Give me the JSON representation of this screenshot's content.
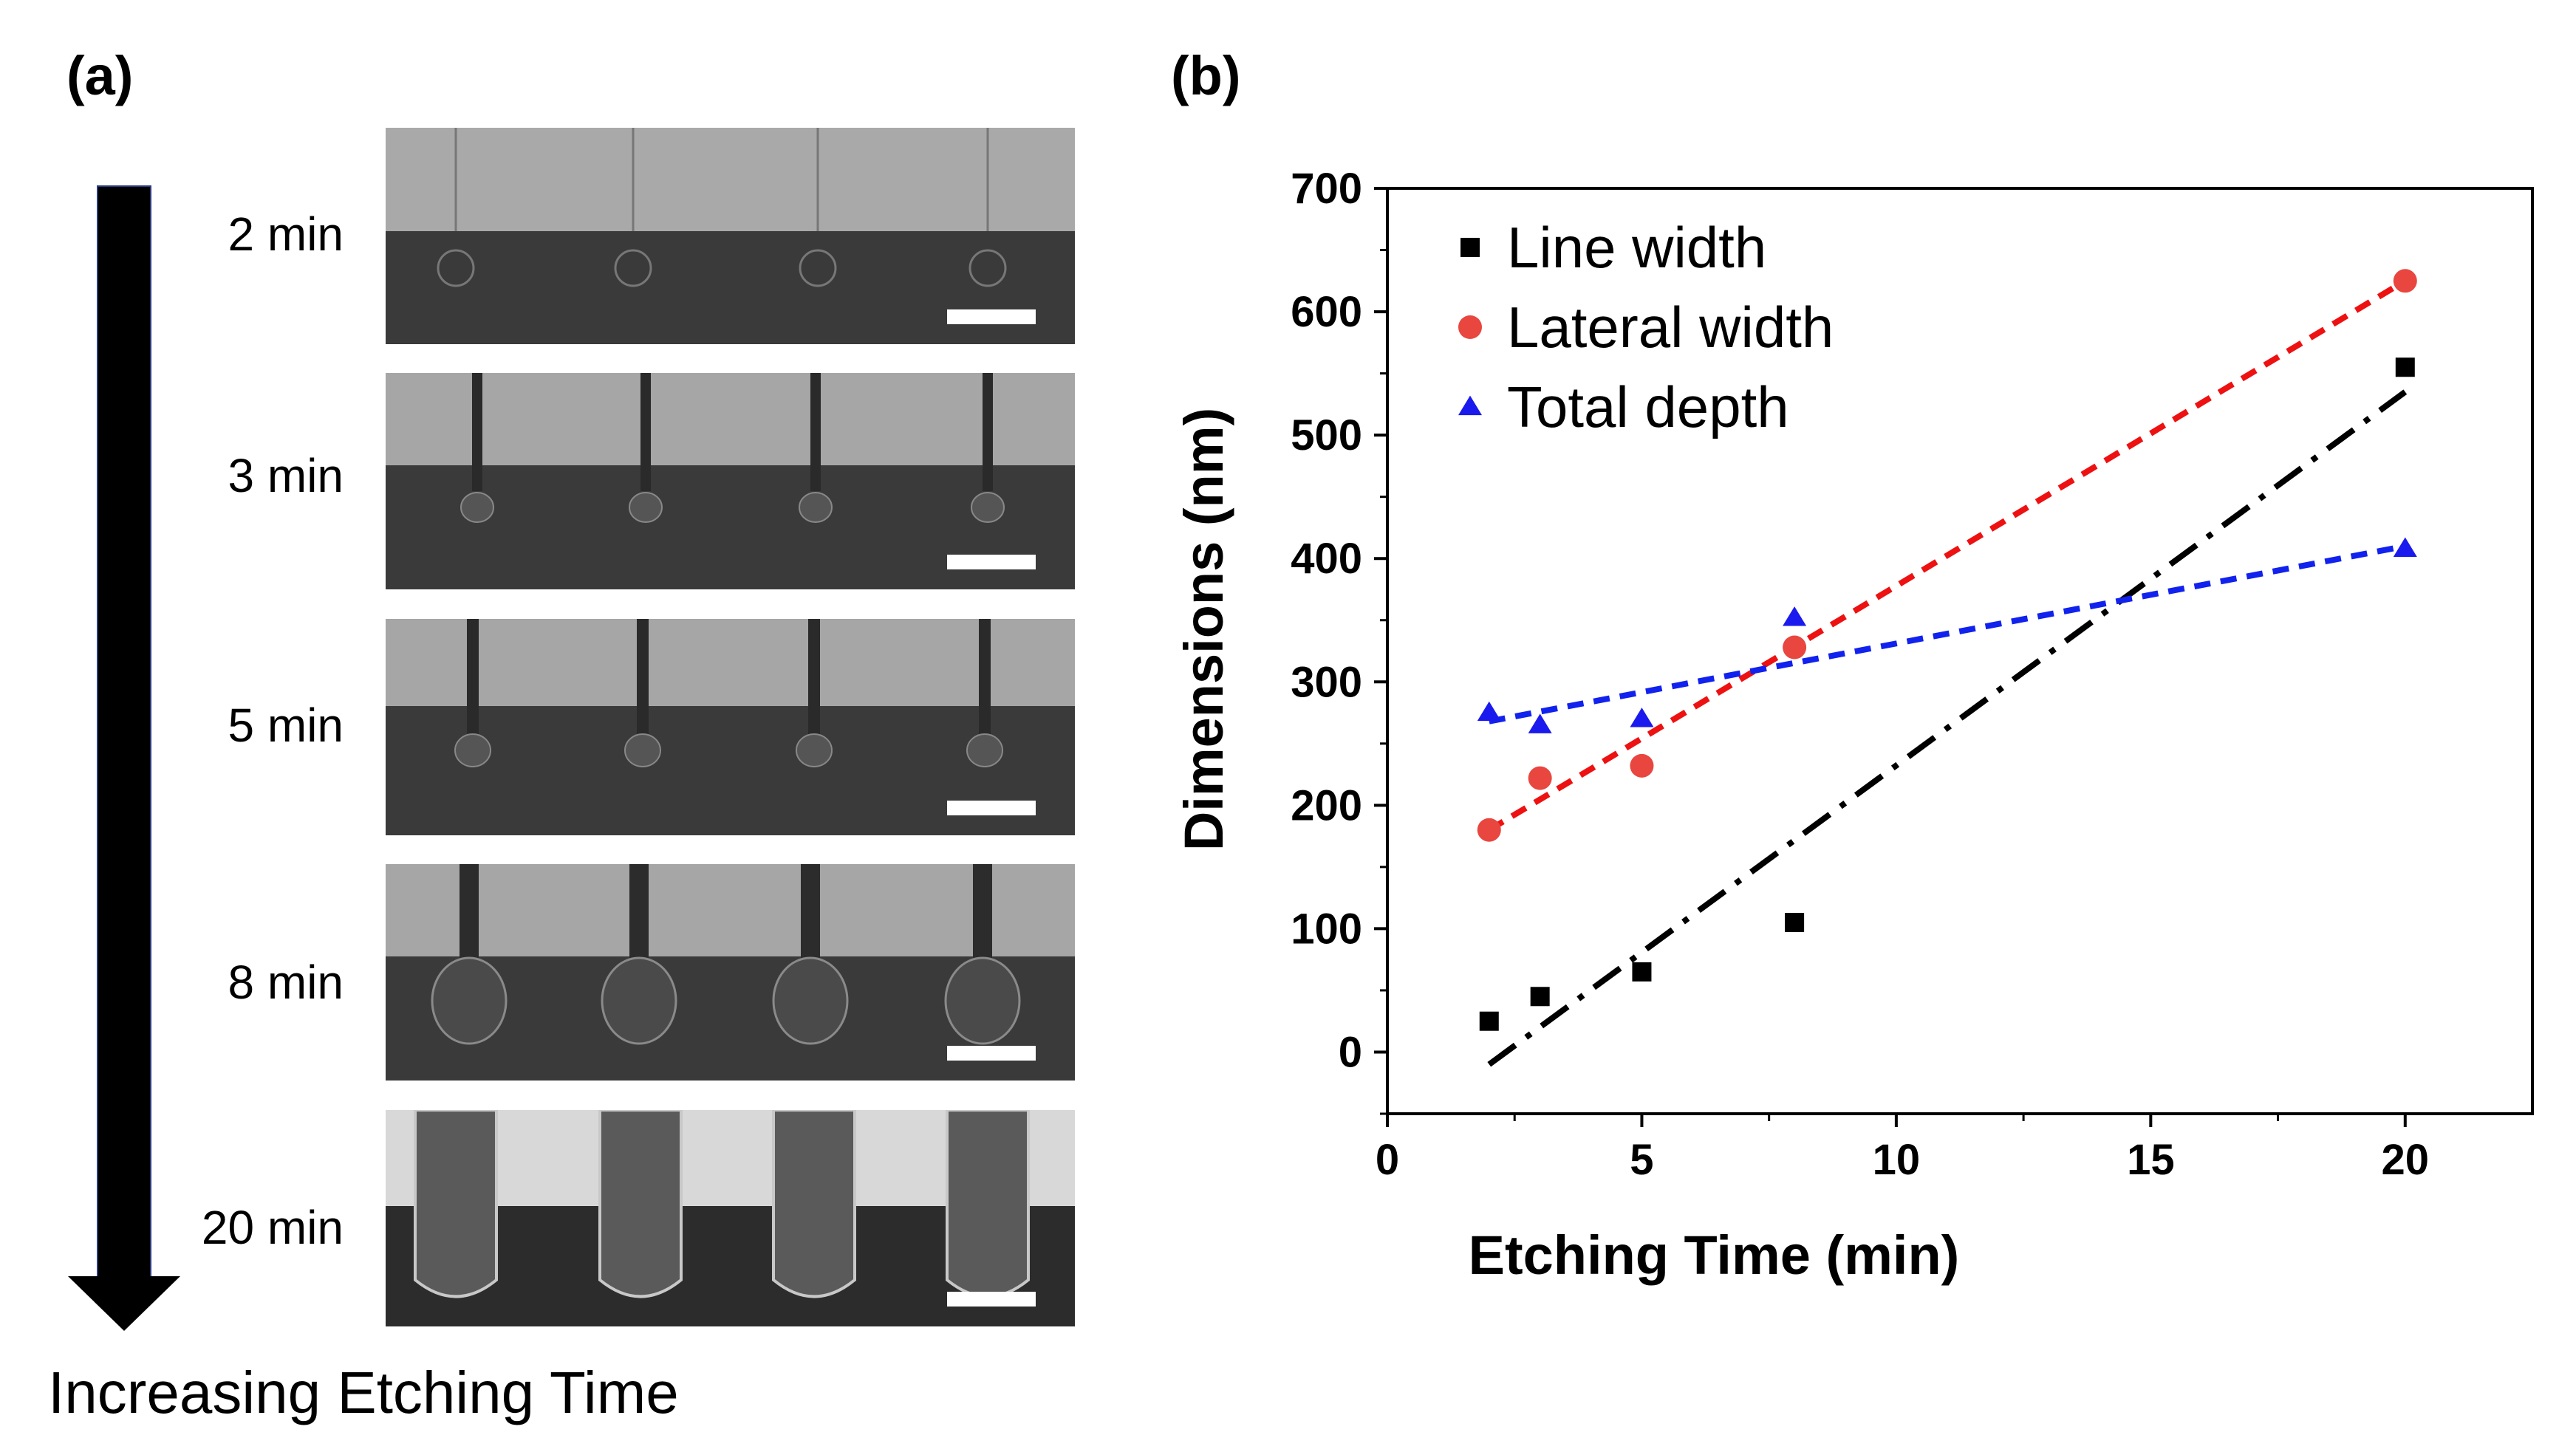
{
  "panels": {
    "a_label": "(a)",
    "b_label": "(b)"
  },
  "sem_images": [
    {
      "time_label": "2 min",
      "style": "circle"
    },
    {
      "time_label": "3 min",
      "style": "thin"
    },
    {
      "time_label": "5 min",
      "style": "thin"
    },
    {
      "time_label": "8 min",
      "style": "bulb"
    },
    {
      "time_label": "20 min",
      "style": "wide"
    }
  ],
  "arrow_caption": "Increasing Etching Time",
  "colors": {
    "line_width": "#000000",
    "lateral_width": "#e8463f",
    "total_depth": "#1a1aee",
    "lateral_fit": "#ee1111",
    "depth_fit": "#1122ee"
  },
  "chart_data": {
    "type": "scatter",
    "xlabel": "Etching Time (min)",
    "ylabel": "Dimensions (nm)",
    "xlim": [
      0,
      22.5
    ],
    "ylim": [
      -50,
      700
    ],
    "xticks": [
      0,
      5,
      10,
      15,
      20
    ],
    "yticks": [
      0,
      100,
      200,
      300,
      400,
      500,
      600,
      700
    ],
    "legend_position": "top-left",
    "series": [
      {
        "name": "Line width",
        "marker": "square",
        "x": [
          2,
          3,
          5,
          8,
          20
        ],
        "y": [
          25,
          45,
          65,
          105,
          555
        ]
      },
      {
        "name": "Lateral width",
        "marker": "circle",
        "x": [
          2,
          3,
          5,
          8,
          20
        ],
        "y": [
          180,
          222,
          232,
          328,
          625
        ]
      },
      {
        "name": "Total depth",
        "marker": "triangle",
        "x": [
          2,
          3,
          5,
          8,
          20
        ],
        "y": [
          275,
          265,
          270,
          352,
          408
        ]
      }
    ],
    "fits": [
      {
        "series": "Line width",
        "style": "dash-dot",
        "x": [
          2,
          20
        ],
        "y": [
          -10,
          535
        ]
      },
      {
        "series": "Lateral width",
        "style": "dashed",
        "x": [
          2,
          20
        ],
        "y": [
          180,
          625
        ]
      },
      {
        "series": "Total depth",
        "style": "dashed",
        "x": [
          2,
          20
        ],
        "y": [
          268,
          410
        ]
      }
    ]
  }
}
